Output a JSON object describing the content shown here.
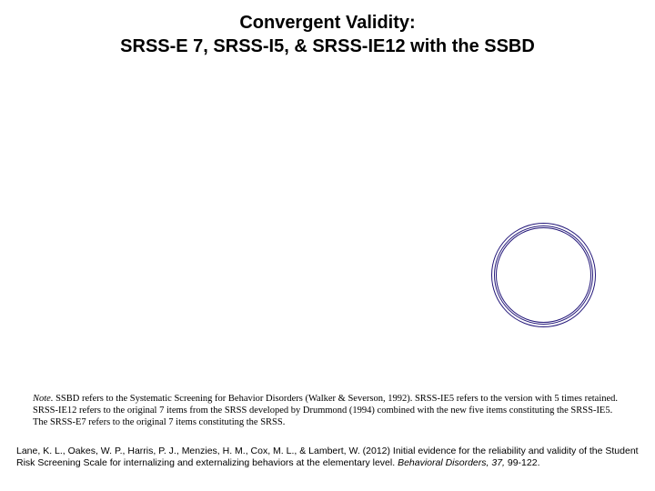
{
  "title": {
    "line1": "Convergent Validity:",
    "line2": "SRSS-E 7, SRSS-I5, & SRSS-IE12 with the SSBD"
  },
  "note": {
    "label": "Note.",
    "text": " SSBD refers to the Systematic Screening for Behavior Disorders (Walker & Severson, 1992). SRSS-IE5 refers to the version with 5 times retained. SRSS-IE12 refers to the original 7 items from the SRSS developed by Drummond (1994) combined with the new five items constituting the SRSS-IE5. The SRSS-E7 refers to the original 7 items constituting the SRSS."
  },
  "citation": {
    "prefix": "Lane, K. L., Oakes, W. P., Harris, P. J., Menzies, H. M., Cox, M. L., & Lambert, W. (2012) Initial evidence for the reliability and validity of the Student Risk Screening Scale for internalizing and externalizing behaviors at the elementary level. ",
    "journal": "Behavioral Disorders, 37,",
    "suffix": " 99-122."
  },
  "colors": {
    "background": "#ffffff",
    "text": "#000000",
    "circle_stroke": "#24187a"
  }
}
